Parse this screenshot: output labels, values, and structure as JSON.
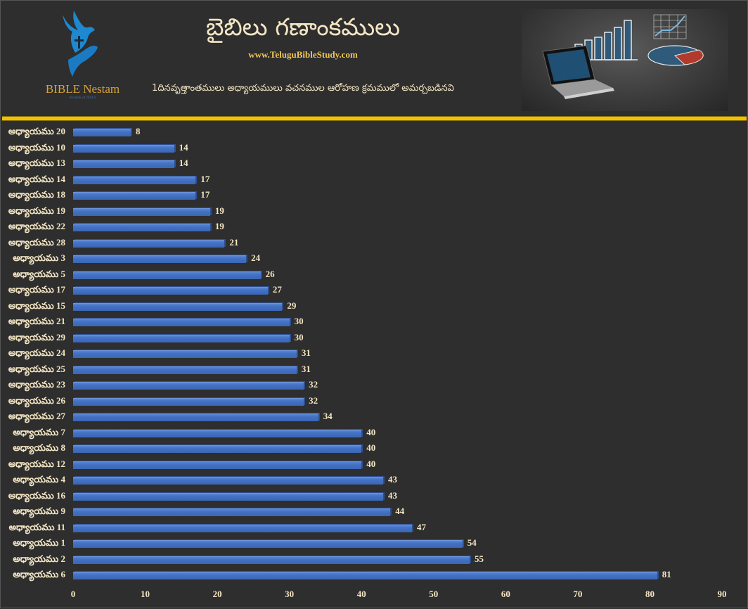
{
  "header": {
    "logo_text": "BIBLE Nestam",
    "logo_tagline": "disciples of JESUS",
    "title": "బైబిలు గణాంకములు",
    "website": "www.TeluguBibleStudy.com",
    "subtitle": "1దినవృత్తాంతములు అధ్యాయములు వచనముల ఆరోహణ క్రమములో అమర్చబడినవి",
    "hero_image": "laptop-with-charts-illustration"
  },
  "colors": {
    "background": "#2e2e2e",
    "bar": "#4472c4",
    "divider": "#f2c200",
    "text": "#f4e6c4",
    "website": "#f0c75a",
    "logo_text": "#d9a43a",
    "logo_icon": "#1e88d0"
  },
  "chart_data": {
    "type": "bar",
    "orientation": "horizontal",
    "title": "బైబిలు గణాంకములు",
    "subtitle": "1దినవృత్తాంతములు అధ్యాయములు వచనముల ఆరోహణ క్రమములో అమర్చబడినవి",
    "xlabel": "",
    "ylabel": "",
    "xlim": [
      0,
      90
    ],
    "x_ticks": [
      0,
      10,
      20,
      30,
      40,
      50,
      60,
      70,
      80,
      90
    ],
    "grid": false,
    "legend": null,
    "data_labels": true,
    "categories": [
      "అధ్యాయము 20",
      "అధ్యాయము 10",
      "అధ్యాయము 13",
      "అధ్యాయము 14",
      "అధ్యాయము 18",
      "అధ్యాయము 19",
      "అధ్యాయము 22",
      "అధ్యాయము 28",
      "అధ్యాయము 3",
      "అధ్యాయము 5",
      "అధ్యాయము 17",
      "అధ్యాయము 15",
      "అధ్యాయము 21",
      "అధ్యాయము 29",
      "అధ్యాయము 24",
      "అధ్యాయము 25",
      "అధ్యాయము 23",
      "అధ్యాయము 26",
      "అధ్యాయము 27",
      "అధ్యాయము 7",
      "అధ్యాయము 8",
      "అధ్యాయము 12",
      "అధ్యాయము 4",
      "అధ్యాయము 16",
      "అధ్యాయము 9",
      "అధ్యాయము 11",
      "అధ్యాయము 1",
      "అధ్యాయము 2",
      "అధ్యాయము 6"
    ],
    "values": [
      8,
      14,
      14,
      17,
      17,
      19,
      19,
      21,
      24,
      26,
      27,
      29,
      30,
      30,
      31,
      31,
      32,
      32,
      34,
      40,
      40,
      40,
      43,
      43,
      44,
      47,
      54,
      55,
      81
    ]
  }
}
